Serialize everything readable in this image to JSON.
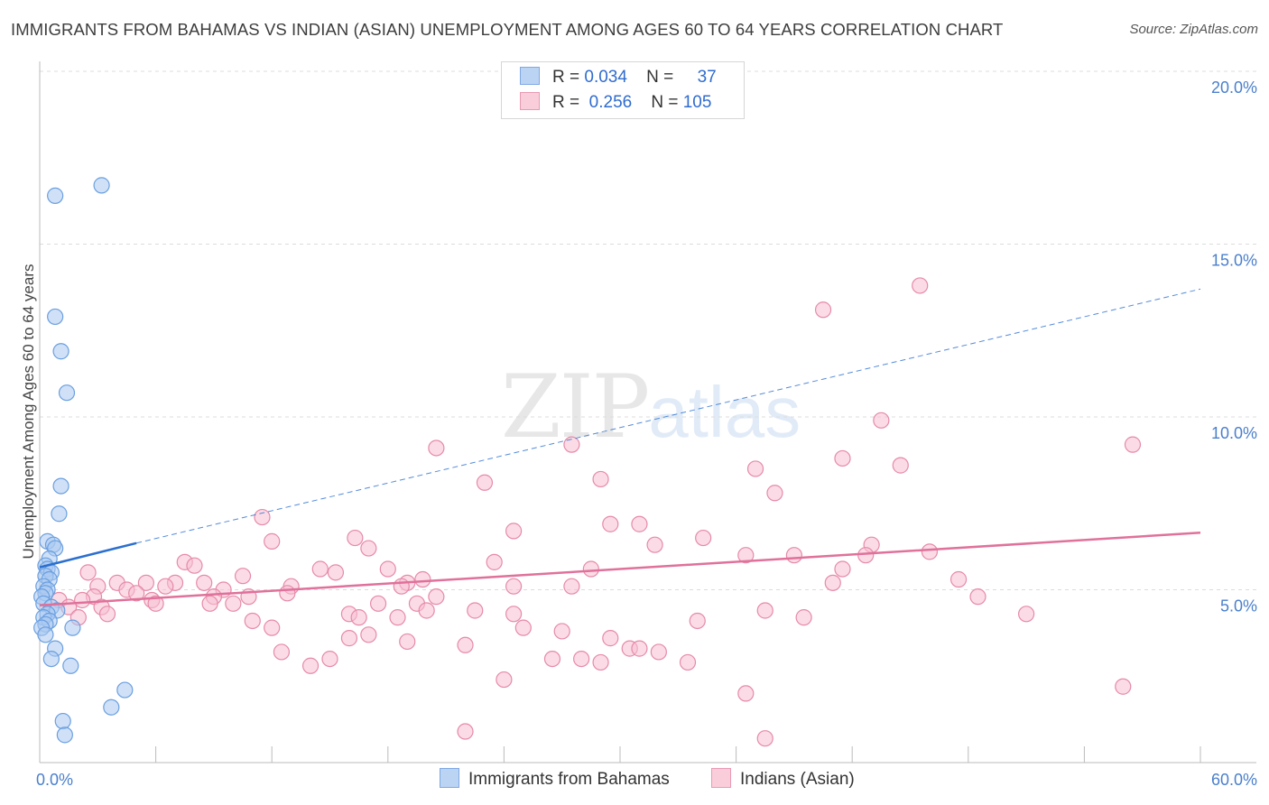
{
  "title": "IMMIGRANTS FROM BAHAMAS VS INDIAN (ASIAN) UNEMPLOYMENT AMONG AGES 60 TO 64 YEARS CORRELATION CHART",
  "source": "Source: ZipAtlas.com",
  "watermark": {
    "zip": "ZIP",
    "atlas": "atlas"
  },
  "legend": {
    "rows": [
      {
        "r_label": "R =",
        "r_value": "0.034",
        "n_label": "N =",
        "n_value": "37"
      },
      {
        "r_label": "R =",
        "r_value": "0.256",
        "n_label": "N =",
        "n_value": "105"
      }
    ]
  },
  "bottom_legend": {
    "series1": "Immigrants from Bahamas",
    "series2": "Indians (Asian)"
  },
  "colors": {
    "blue_fill": "#aac8f0",
    "blue_stroke": "#6a9fe0",
    "blue_line": "#2b6fcf",
    "pink_fill": "#f7c0d2",
    "pink_stroke": "#e68aa8",
    "pink_line": "#e0719a",
    "grid": "#dcdcdc",
    "tick_text": "#4a7fcc"
  },
  "chart_data": {
    "type": "scatter",
    "title": "IMMIGRANTS FROM BAHAMAS VS INDIAN (ASIAN) UNEMPLOYMENT AMONG AGES 60 TO 64 YEARS CORRELATION CHART",
    "xlabel": "",
    "ylabel": "Unemployment Among Ages 60 to 64 years",
    "xlim": [
      0,
      60
    ],
    "ylim": [
      0,
      21
    ],
    "x_tick_labels": [
      {
        "value": 0,
        "label": "0.0%"
      },
      {
        "value": 60,
        "label": "60.0%"
      }
    ],
    "x_minor_ticks": [
      0,
      6,
      12,
      18,
      24,
      30,
      36,
      42,
      48,
      54,
      60
    ],
    "y_ticks": [
      {
        "value": 5,
        "label": "5.0%"
      },
      {
        "value": 10,
        "label": "10.0%"
      },
      {
        "value": 15,
        "label": "15.0%"
      },
      {
        "value": 20,
        "label": "20.0%"
      }
    ],
    "series": [
      {
        "name": "Immigrants from Bahamas",
        "color": "blue",
        "points": [
          [
            0.8,
            16.4
          ],
          [
            3.2,
            16.7
          ],
          [
            0.8,
            12.9
          ],
          [
            1.1,
            11.9
          ],
          [
            1.4,
            10.7
          ],
          [
            1.1,
            8.0
          ],
          [
            1.0,
            7.2
          ],
          [
            0.4,
            6.4
          ],
          [
            0.7,
            6.3
          ],
          [
            0.8,
            6.2
          ],
          [
            0.5,
            5.9
          ],
          [
            0.3,
            5.7
          ],
          [
            0.4,
            5.6
          ],
          [
            0.6,
            5.5
          ],
          [
            0.3,
            5.4
          ],
          [
            0.5,
            5.3
          ],
          [
            0.2,
            5.1
          ],
          [
            0.4,
            5.0
          ],
          [
            0.3,
            4.9
          ],
          [
            0.1,
            4.8
          ],
          [
            0.2,
            4.6
          ],
          [
            0.6,
            4.5
          ],
          [
            0.9,
            4.4
          ],
          [
            0.4,
            4.3
          ],
          [
            0.2,
            4.2
          ],
          [
            0.5,
            4.1
          ],
          [
            0.3,
            4.0
          ],
          [
            0.1,
            3.9
          ],
          [
            1.7,
            3.9
          ],
          [
            0.3,
            3.7
          ],
          [
            0.8,
            3.3
          ],
          [
            0.6,
            3.0
          ],
          [
            1.6,
            2.8
          ],
          [
            4.4,
            2.1
          ],
          [
            3.7,
            1.6
          ],
          [
            1.2,
            1.2
          ],
          [
            1.3,
            0.8
          ]
        ],
        "trend_solid": [
          [
            0,
            5.65
          ],
          [
            5,
            6.35
          ]
        ],
        "trend_dashed": [
          [
            5,
            6.35
          ],
          [
            60,
            13.7
          ]
        ]
      },
      {
        "name": "Indians (Asian)",
        "color": "pink",
        "points": [
          [
            45.5,
            13.8
          ],
          [
            40.5,
            13.1
          ],
          [
            43.5,
            9.9
          ],
          [
            56.5,
            9.2
          ],
          [
            20.5,
            9.1
          ],
          [
            27.5,
            9.2
          ],
          [
            41.5,
            8.8
          ],
          [
            44.5,
            8.6
          ],
          [
            37.0,
            8.5
          ],
          [
            29.0,
            8.2
          ],
          [
            23.0,
            8.1
          ],
          [
            38.0,
            7.8
          ],
          [
            11.5,
            7.1
          ],
          [
            29.5,
            6.9
          ],
          [
            31.0,
            6.9
          ],
          [
            24.5,
            6.7
          ],
          [
            16.3,
            6.5
          ],
          [
            12.0,
            6.4
          ],
          [
            34.3,
            6.5
          ],
          [
            17.0,
            6.2
          ],
          [
            31.8,
            6.3
          ],
          [
            43.0,
            6.3
          ],
          [
            36.5,
            6.0
          ],
          [
            39.0,
            6.0
          ],
          [
            42.7,
            6.0
          ],
          [
            23.5,
            5.8
          ],
          [
            7.5,
            5.8
          ],
          [
            8.0,
            5.7
          ],
          [
            14.5,
            5.6
          ],
          [
            18.0,
            5.6
          ],
          [
            28.5,
            5.6
          ],
          [
            2.5,
            5.5
          ],
          [
            15.3,
            5.5
          ],
          [
            10.5,
            5.4
          ],
          [
            47.5,
            5.3
          ],
          [
            4.0,
            5.2
          ],
          [
            5.5,
            5.2
          ],
          [
            7.0,
            5.2
          ],
          [
            8.5,
            5.2
          ],
          [
            19.0,
            5.2
          ],
          [
            19.8,
            5.3
          ],
          [
            41.0,
            5.2
          ],
          [
            3.0,
            5.1
          ],
          [
            6.5,
            5.1
          ],
          [
            13.0,
            5.1
          ],
          [
            18.7,
            5.1
          ],
          [
            24.5,
            5.1
          ],
          [
            27.5,
            5.1
          ],
          [
            4.5,
            5.0
          ],
          [
            9.5,
            5.0
          ],
          [
            12.8,
            4.9
          ],
          [
            2.8,
            4.8
          ],
          [
            5.0,
            4.9
          ],
          [
            9.0,
            4.8
          ],
          [
            10.8,
            4.8
          ],
          [
            20.5,
            4.8
          ],
          [
            48.5,
            4.8
          ],
          [
            1.0,
            4.7
          ],
          [
            2.2,
            4.7
          ],
          [
            5.8,
            4.7
          ],
          [
            6.0,
            4.6
          ],
          [
            8.8,
            4.6
          ],
          [
            10.0,
            4.6
          ],
          [
            17.5,
            4.6
          ],
          [
            19.5,
            4.6
          ],
          [
            1.5,
            4.5
          ],
          [
            3.2,
            4.5
          ],
          [
            20.0,
            4.4
          ],
          [
            22.5,
            4.4
          ],
          [
            37.5,
            4.4
          ],
          [
            16.0,
            4.3
          ],
          [
            2.0,
            4.2
          ],
          [
            3.5,
            4.3
          ],
          [
            16.5,
            4.2
          ],
          [
            11.0,
            4.1
          ],
          [
            24.5,
            4.3
          ],
          [
            18.5,
            4.2
          ],
          [
            34.0,
            4.1
          ],
          [
            39.5,
            4.2
          ],
          [
            51.0,
            4.3
          ],
          [
            12.0,
            3.9
          ],
          [
            25.0,
            3.9
          ],
          [
            27.0,
            3.8
          ],
          [
            29.5,
            3.6
          ],
          [
            17.0,
            3.7
          ],
          [
            16.0,
            3.6
          ],
          [
            19.0,
            3.5
          ],
          [
            22.0,
            3.4
          ],
          [
            30.5,
            3.3
          ],
          [
            31.0,
            3.3
          ],
          [
            32.0,
            3.2
          ],
          [
            12.5,
            3.2
          ],
          [
            15.0,
            3.0
          ],
          [
            28.0,
            3.0
          ],
          [
            26.5,
            3.0
          ],
          [
            29.0,
            2.9
          ],
          [
            33.5,
            2.9
          ],
          [
            14.0,
            2.8
          ],
          [
            24.0,
            2.4
          ],
          [
            56.0,
            2.2
          ],
          [
            36.5,
            2.0
          ],
          [
            22.0,
            0.9
          ],
          [
            37.5,
            0.7
          ],
          [
            41.5,
            5.6
          ],
          [
            46.0,
            6.1
          ]
        ],
        "trend_solid": [
          [
            0,
            4.55
          ],
          [
            60,
            6.65
          ]
        ]
      }
    ]
  }
}
